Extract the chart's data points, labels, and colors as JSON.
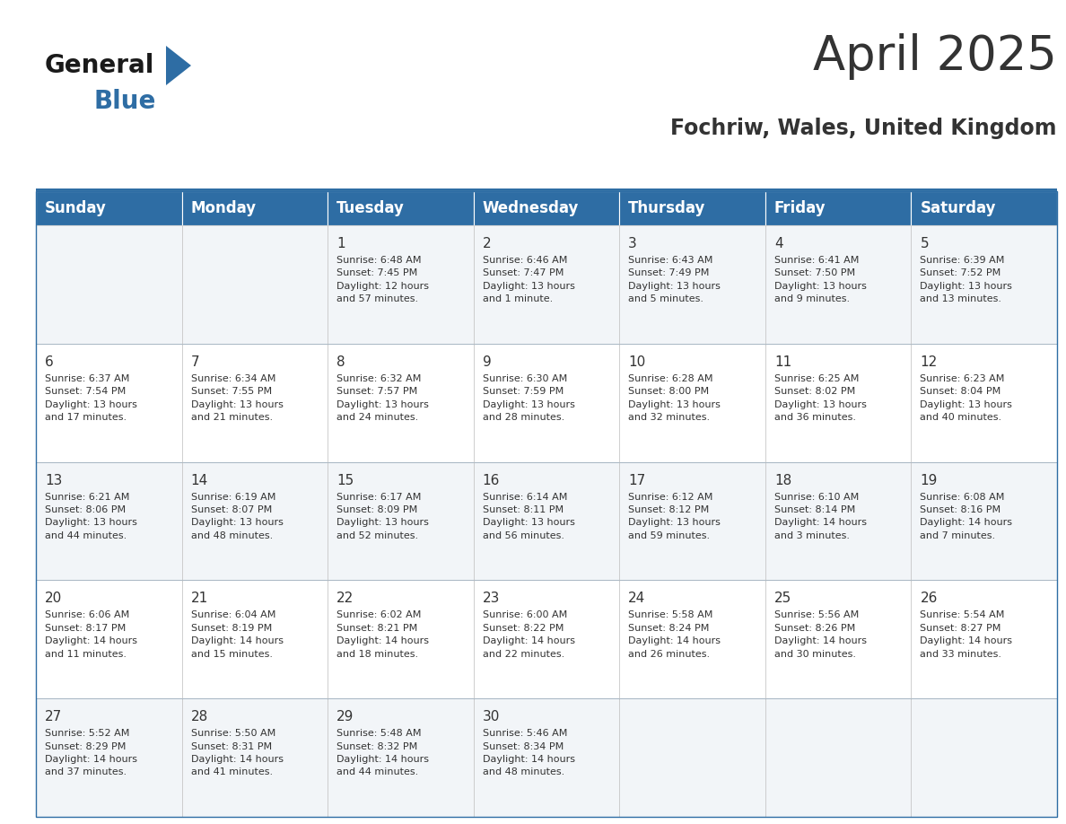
{
  "title": "April 2025",
  "subtitle": "Fochriw, Wales, United Kingdom",
  "header_bg": "#2e6da4",
  "header_text_color": "#ffffff",
  "cell_bg_week_odd": "#f2f5f8",
  "cell_bg_week_even": "#ffffff",
  "border_color": "#2e6da4",
  "cell_border_color": "#cccccc",
  "text_color": "#333333",
  "days_of_week": [
    "Sunday",
    "Monday",
    "Tuesday",
    "Wednesday",
    "Thursday",
    "Friday",
    "Saturday"
  ],
  "weeks": [
    [
      {
        "day": "",
        "info": ""
      },
      {
        "day": "",
        "info": ""
      },
      {
        "day": "1",
        "info": "Sunrise: 6:48 AM\nSunset: 7:45 PM\nDaylight: 12 hours\nand 57 minutes."
      },
      {
        "day": "2",
        "info": "Sunrise: 6:46 AM\nSunset: 7:47 PM\nDaylight: 13 hours\nand 1 minute."
      },
      {
        "day": "3",
        "info": "Sunrise: 6:43 AM\nSunset: 7:49 PM\nDaylight: 13 hours\nand 5 minutes."
      },
      {
        "day": "4",
        "info": "Sunrise: 6:41 AM\nSunset: 7:50 PM\nDaylight: 13 hours\nand 9 minutes."
      },
      {
        "day": "5",
        "info": "Sunrise: 6:39 AM\nSunset: 7:52 PM\nDaylight: 13 hours\nand 13 minutes."
      }
    ],
    [
      {
        "day": "6",
        "info": "Sunrise: 6:37 AM\nSunset: 7:54 PM\nDaylight: 13 hours\nand 17 minutes."
      },
      {
        "day": "7",
        "info": "Sunrise: 6:34 AM\nSunset: 7:55 PM\nDaylight: 13 hours\nand 21 minutes."
      },
      {
        "day": "8",
        "info": "Sunrise: 6:32 AM\nSunset: 7:57 PM\nDaylight: 13 hours\nand 24 minutes."
      },
      {
        "day": "9",
        "info": "Sunrise: 6:30 AM\nSunset: 7:59 PM\nDaylight: 13 hours\nand 28 minutes."
      },
      {
        "day": "10",
        "info": "Sunrise: 6:28 AM\nSunset: 8:00 PM\nDaylight: 13 hours\nand 32 minutes."
      },
      {
        "day": "11",
        "info": "Sunrise: 6:25 AM\nSunset: 8:02 PM\nDaylight: 13 hours\nand 36 minutes."
      },
      {
        "day": "12",
        "info": "Sunrise: 6:23 AM\nSunset: 8:04 PM\nDaylight: 13 hours\nand 40 minutes."
      }
    ],
    [
      {
        "day": "13",
        "info": "Sunrise: 6:21 AM\nSunset: 8:06 PM\nDaylight: 13 hours\nand 44 minutes."
      },
      {
        "day": "14",
        "info": "Sunrise: 6:19 AM\nSunset: 8:07 PM\nDaylight: 13 hours\nand 48 minutes."
      },
      {
        "day": "15",
        "info": "Sunrise: 6:17 AM\nSunset: 8:09 PM\nDaylight: 13 hours\nand 52 minutes."
      },
      {
        "day": "16",
        "info": "Sunrise: 6:14 AM\nSunset: 8:11 PM\nDaylight: 13 hours\nand 56 minutes."
      },
      {
        "day": "17",
        "info": "Sunrise: 6:12 AM\nSunset: 8:12 PM\nDaylight: 13 hours\nand 59 minutes."
      },
      {
        "day": "18",
        "info": "Sunrise: 6:10 AM\nSunset: 8:14 PM\nDaylight: 14 hours\nand 3 minutes."
      },
      {
        "day": "19",
        "info": "Sunrise: 6:08 AM\nSunset: 8:16 PM\nDaylight: 14 hours\nand 7 minutes."
      }
    ],
    [
      {
        "day": "20",
        "info": "Sunrise: 6:06 AM\nSunset: 8:17 PM\nDaylight: 14 hours\nand 11 minutes."
      },
      {
        "day": "21",
        "info": "Sunrise: 6:04 AM\nSunset: 8:19 PM\nDaylight: 14 hours\nand 15 minutes."
      },
      {
        "day": "22",
        "info": "Sunrise: 6:02 AM\nSunset: 8:21 PM\nDaylight: 14 hours\nand 18 minutes."
      },
      {
        "day": "23",
        "info": "Sunrise: 6:00 AM\nSunset: 8:22 PM\nDaylight: 14 hours\nand 22 minutes."
      },
      {
        "day": "24",
        "info": "Sunrise: 5:58 AM\nSunset: 8:24 PM\nDaylight: 14 hours\nand 26 minutes."
      },
      {
        "day": "25",
        "info": "Sunrise: 5:56 AM\nSunset: 8:26 PM\nDaylight: 14 hours\nand 30 minutes."
      },
      {
        "day": "26",
        "info": "Sunrise: 5:54 AM\nSunset: 8:27 PM\nDaylight: 14 hours\nand 33 minutes."
      }
    ],
    [
      {
        "day": "27",
        "info": "Sunrise: 5:52 AM\nSunset: 8:29 PM\nDaylight: 14 hours\nand 37 minutes."
      },
      {
        "day": "28",
        "info": "Sunrise: 5:50 AM\nSunset: 8:31 PM\nDaylight: 14 hours\nand 41 minutes."
      },
      {
        "day": "29",
        "info": "Sunrise: 5:48 AM\nSunset: 8:32 PM\nDaylight: 14 hours\nand 44 minutes."
      },
      {
        "day": "30",
        "info": "Sunrise: 5:46 AM\nSunset: 8:34 PM\nDaylight: 14 hours\nand 48 minutes."
      },
      {
        "day": "",
        "info": ""
      },
      {
        "day": "",
        "info": ""
      },
      {
        "day": "",
        "info": ""
      }
    ]
  ],
  "logo_color1": "#1a1a1a",
  "logo_color2": "#2e6da4",
  "title_fontsize": 38,
  "subtitle_fontsize": 17,
  "day_header_fontsize": 12,
  "day_num_fontsize": 11,
  "cell_text_fontsize": 8
}
